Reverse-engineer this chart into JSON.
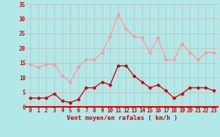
{
  "x": [
    0,
    1,
    2,
    3,
    4,
    5,
    6,
    7,
    8,
    9,
    10,
    11,
    12,
    13,
    14,
    15,
    16,
    17,
    18,
    19,
    20,
    21,
    22,
    23
  ],
  "wind_mean": [
    3,
    3,
    3,
    4.5,
    2,
    1.5,
    2.5,
    6.5,
    6.5,
    8.5,
    7.5,
    14,
    14,
    10.5,
    8.5,
    6.5,
    7.5,
    5.5,
    3,
    4.5,
    6.5,
    6.5,
    6.5,
    5.5
  ],
  "wind_gust": [
    14.5,
    13.5,
    14.5,
    14.5,
    10.5,
    8.5,
    13.5,
    16,
    16,
    18.5,
    24,
    31.5,
    26.5,
    24,
    23.5,
    18.5,
    23.5,
    16,
    16,
    21.5,
    18.5,
    16,
    18.5,
    18.5
  ],
  "mean_color": "#cc0000",
  "gust_color": "#ff9999",
  "background_color": "#b3e8e8",
  "grid_color": "#bbbbbb",
  "xlabel": "Vent moyen/en rafales ( km/h )",
  "ylim": [
    0,
    35
  ],
  "yticks": [
    0,
    5,
    10,
    15,
    20,
    25,
    30,
    35
  ],
  "xticks": [
    0,
    1,
    2,
    3,
    4,
    5,
    6,
    7,
    8,
    9,
    10,
    11,
    12,
    13,
    14,
    15,
    16,
    17,
    18,
    19,
    20,
    21,
    22,
    23
  ],
  "label_color": "#cc0000",
  "marker": "D",
  "markersize": 2.5,
  "linewidth": 1.0
}
